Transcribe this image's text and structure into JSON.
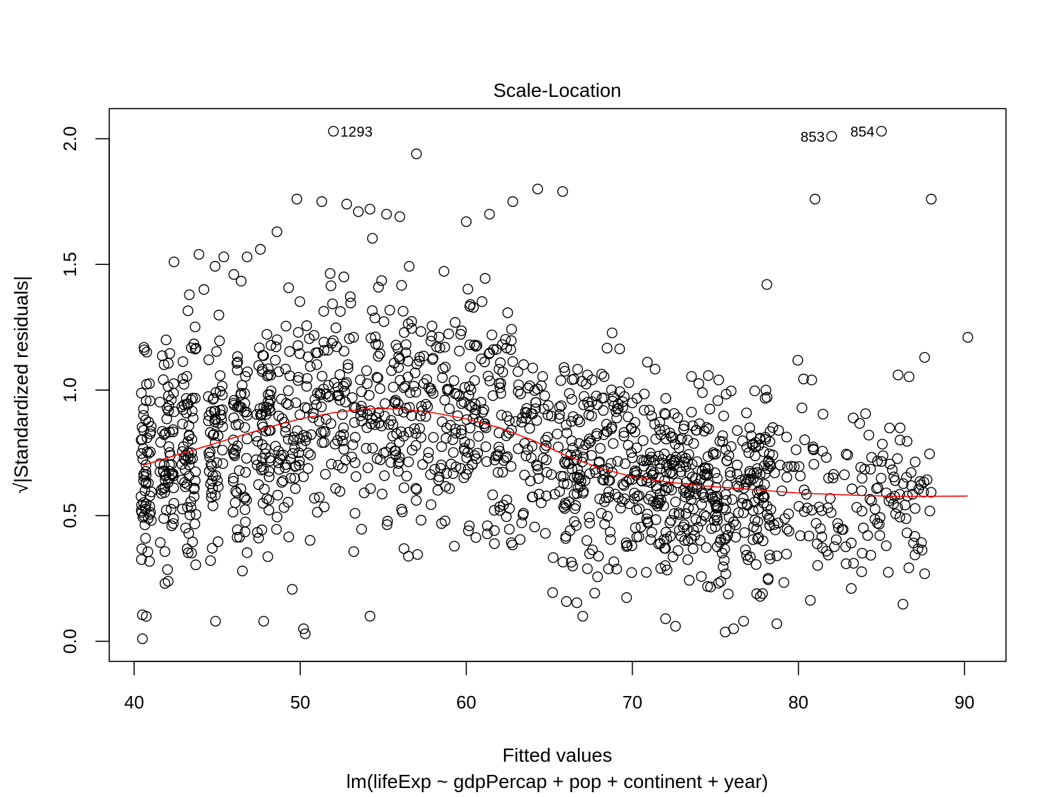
{
  "chart_data": {
    "type": "scatter",
    "title": "Scale-Location",
    "xlabel": "Fitted values",
    "subtitle": "lm(lifeExp ~ gdpPercap + pop + continent + year)",
    "ylabel": "√|Standardized residuals|",
    "xlim": [
      38.5,
      92.5
    ],
    "ylim": [
      -0.08,
      2.12
    ],
    "x_ticks": [
      "40",
      "50",
      "60",
      "70",
      "80",
      "90"
    ],
    "y_ticks": [
      "0.0",
      "0.5",
      "1.0",
      "1.5",
      "2.0"
    ],
    "grid": false,
    "point_style": "open-circle",
    "colors": {
      "points": "#000000",
      "smooth": "#ff0000",
      "background": "#ffffff"
    },
    "labeled_points": [
      {
        "label": "1293",
        "x": 52.0,
        "y": 2.03,
        "side": "right"
      },
      {
        "label": "853",
        "x": 82.0,
        "y": 2.01,
        "side": "left"
      },
      {
        "label": "854",
        "x": 85.0,
        "y": 2.03,
        "side": "left"
      }
    ],
    "outliers": [
      [
        57.0,
        1.94
      ],
      [
        64.3,
        1.8
      ],
      [
        65.8,
        1.79
      ],
      [
        81.0,
        1.76
      ],
      [
        88.0,
        1.76
      ],
      [
        49.8,
        1.76
      ],
      [
        51.3,
        1.75
      ],
      [
        52.8,
        1.74
      ],
      [
        53.5,
        1.71
      ],
      [
        54.2,
        1.72
      ],
      [
        55.2,
        1.7
      ],
      [
        56.0,
        1.69
      ],
      [
        61.4,
        1.7
      ],
      [
        62.8,
        1.75
      ],
      [
        60.0,
        1.67
      ],
      [
        42.4,
        1.51
      ],
      [
        43.9,
        1.54
      ],
      [
        45.4,
        1.53
      ],
      [
        46.8,
        1.53
      ],
      [
        47.6,
        1.56
      ],
      [
        48.6,
        1.63
      ],
      [
        44.2,
        1.4
      ],
      [
        46.0,
        1.46
      ],
      [
        78.1,
        1.42
      ],
      [
        90.2,
        1.21
      ],
      [
        87.6,
        1.13
      ],
      [
        86.0,
        1.06
      ],
      [
        80.8,
        1.04
      ],
      [
        75.2,
        1.04
      ],
      [
        40.5,
        0.01
      ],
      [
        50.2,
        0.05
      ],
      [
        50.3,
        0.03
      ],
      [
        44.9,
        0.08
      ],
      [
        47.8,
        0.08
      ],
      [
        54.2,
        0.1
      ],
      [
        72.6,
        0.06
      ],
      [
        76.1,
        0.05
      ],
      [
        78.7,
        0.07
      ],
      [
        72.0,
        0.09
      ],
      [
        76.7,
        0.08
      ]
    ],
    "bulk_cloud": {
      "n_points": 1620,
      "x_range": [
        40.4,
        88.0
      ],
      "y_range": [
        0.0,
        1.62
      ],
      "description_center": "dense band of residuals, mean about 0.7"
    },
    "smooth_line": {
      "x": [
        40.5,
        42,
        44,
        46,
        48,
        50,
        52,
        54,
        56,
        58,
        60,
        62,
        64,
        66,
        68,
        70,
        72,
        74,
        76,
        78,
        80,
        82,
        84,
        86,
        88,
        90.2
      ],
      "y": [
        0.7,
        0.73,
        0.77,
        0.81,
        0.85,
        0.885,
        0.91,
        0.925,
        0.925,
        0.91,
        0.885,
        0.85,
        0.8,
        0.74,
        0.69,
        0.655,
        0.635,
        0.62,
        0.61,
        0.6,
        0.59,
        0.585,
        0.58,
        0.577,
        0.577,
        0.578
      ]
    }
  }
}
